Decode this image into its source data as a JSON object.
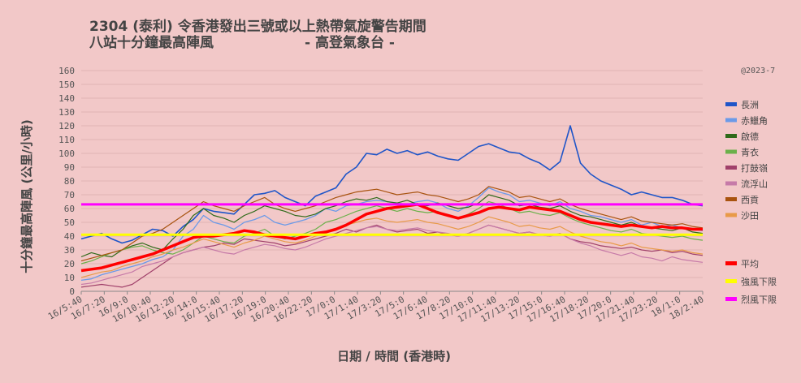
{
  "chart_data": {
    "type": "line",
    "title_line1": "2304 (泰利)   令香港發出三號或以上熱帶氣旋警告期間",
    "title_line2": "八站十分鐘最高陣風",
    "title_source": "- 高登氣象台 -",
    "copyright": "@2023-7",
    "ylabel": "十分鐘最高陣風  (公里/小時)",
    "xlabel": "日期  /  時間  (香港時)",
    "ylim": [
      0,
      160
    ],
    "yticks": [
      0,
      10,
      20,
      30,
      40,
      50,
      60,
      70,
      80,
      90,
      100,
      110,
      120,
      130,
      140,
      150,
      160
    ],
    "grid": true,
    "legend_position": "right",
    "x_ticks": [
      "16/5:40",
      "16/7:20",
      "16/9:0",
      "16/10:40",
      "16/12:20",
      "16/14:0",
      "16/15:40",
      "16/17:20",
      "16/19:0",
      "16/20:40",
      "16/22:20",
      "17/0:0",
      "17/1:40",
      "17/3:20",
      "17/5:0",
      "17/6:40",
      "17/8:20",
      "17/10:0",
      "17/11:40",
      "17/13:20",
      "17/15:0",
      "17/16:40",
      "17/18:20",
      "17/20:0",
      "17/21:40",
      "17/23:20",
      "18/1:0",
      "18/2:40"
    ],
    "series": [
      {
        "name": "長洲",
        "color": "#1f55c8",
        "width": 1.6,
        "values": [
          38,
          40,
          42,
          38,
          35,
          37,
          41,
          45,
          44,
          40,
          47,
          52,
          60,
          58,
          57,
          56,
          63,
          70,
          71,
          73,
          68,
          65,
          62,
          69,
          72,
          75,
          85,
          90,
          100,
          99,
          103,
          100,
          102,
          99,
          101,
          98,
          96,
          95,
          100,
          105,
          107,
          104,
          101,
          100,
          96,
          93,
          88,
          94,
          120,
          93,
          85,
          80,
          77,
          74,
          70,
          72,
          70,
          68,
          68,
          66,
          63,
          62
        ]
      },
      {
        "name": "赤鱲角",
        "color": "#6b9ae8",
        "width": 1.3,
        "values": [
          8,
          9,
          12,
          14,
          16,
          18,
          20,
          23,
          25,
          30,
          40,
          45,
          55,
          50,
          48,
          45,
          50,
          52,
          55,
          50,
          48,
          50,
          52,
          55,
          60,
          58,
          62,
          63,
          65,
          66,
          65,
          64,
          63,
          65,
          66,
          64,
          60,
          58,
          62,
          68,
          75,
          72,
          70,
          65,
          66,
          64,
          62,
          65,
          60,
          58,
          55,
          54,
          52,
          50,
          52,
          48,
          50,
          47,
          48,
          46,
          45,
          44
        ]
      },
      {
        "name": "啟德",
        "color": "#2f6a1a",
        "width": 1.2,
        "values": [
          25,
          28,
          26,
          25,
          30,
          33,
          35,
          32,
          30,
          38,
          45,
          55,
          60,
          55,
          53,
          50,
          55,
          58,
          62,
          60,
          58,
          55,
          54,
          56,
          60,
          62,
          65,
          67,
          66,
          68,
          65,
          64,
          66,
          63,
          62,
          64,
          62,
          60,
          61,
          64,
          70,
          68,
          66,
          62,
          63,
          61,
          60,
          62,
          58,
          55,
          54,
          52,
          50,
          48,
          50,
          47,
          46,
          45,
          44,
          46,
          43,
          42
        ]
      },
      {
        "name": "青衣",
        "color": "#6bb04a",
        "width": 1.2,
        "values": [
          20,
          22,
          25,
          28,
          30,
          32,
          33,
          30,
          28,
          27,
          30,
          35,
          40,
          38,
          36,
          35,
          40,
          42,
          45,
          40,
          38,
          40,
          42,
          45,
          50,
          52,
          55,
          58,
          60,
          62,
          60,
          58,
          60,
          58,
          57,
          58,
          55,
          53,
          56,
          60,
          65,
          63,
          60,
          57,
          58,
          56,
          55,
          57,
          53,
          50,
          48,
          46,
          44,
          43,
          45,
          42,
          41,
          40,
          39,
          40,
          38,
          37
        ]
      },
      {
        "name": "打鼓嶺",
        "color": "#a0406a",
        "width": 1.2,
        "values": [
          3,
          4,
          5,
          4,
          3,
          5,
          10,
          15,
          20,
          25,
          28,
          30,
          32,
          33,
          35,
          34,
          38,
          37,
          36,
          35,
          33,
          34,
          36,
          38,
          40,
          42,
          45,
          43,
          46,
          48,
          45,
          43,
          44,
          45,
          42,
          43,
          41,
          40,
          42,
          45,
          48,
          46,
          44,
          42,
          43,
          41,
          40,
          42,
          38,
          36,
          35,
          33,
          32,
          31,
          32,
          30,
          29,
          30,
          28,
          29,
          27,
          26
        ]
      },
      {
        "name": "流浮山",
        "color": "#c67aa8",
        "width": 1.2,
        "values": [
          5,
          6,
          8,
          10,
          12,
          14,
          18,
          20,
          22,
          25,
          28,
          30,
          32,
          30,
          28,
          27,
          30,
          32,
          34,
          33,
          31,
          30,
          32,
          35,
          38,
          40,
          42,
          44,
          46,
          47,
          45,
          44,
          45,
          46,
          44,
          43,
          42,
          40,
          42,
          45,
          48,
          46,
          44,
          42,
          43,
          41,
          40,
          42,
          38,
          35,
          33,
          30,
          28,
          26,
          28,
          25,
          24,
          22,
          25,
          23,
          22,
          21
        ]
      },
      {
        "name": "西貢",
        "color": "#a8530f",
        "width": 1.2,
        "values": [
          22,
          24,
          26,
          28,
          30,
          35,
          40,
          42,
          45,
          50,
          55,
          60,
          65,
          62,
          60,
          58,
          62,
          65,
          68,
          63,
          60,
          58,
          60,
          62,
          65,
          68,
          70,
          72,
          73,
          74,
          72,
          70,
          71,
          72,
          70,
          69,
          67,
          65,
          67,
          70,
          76,
          74,
          72,
          68,
          69,
          67,
          65,
          67,
          63,
          60,
          58,
          56,
          54,
          52,
          54,
          51,
          50,
          49,
          48,
          49,
          47,
          46
        ]
      },
      {
        "name": "沙田",
        "color": "#e89a48",
        "width": 1.2,
        "values": [
          10,
          12,
          14,
          15,
          18,
          20,
          22,
          25,
          27,
          30,
          32,
          35,
          38,
          36,
          34,
          32,
          35,
          37,
          40,
          38,
          36,
          35,
          37,
          40,
          42,
          45,
          48,
          50,
          52,
          53,
          51,
          50,
          51,
          52,
          50,
          49,
          47,
          45,
          47,
          50,
          54,
          52,
          50,
          47,
          48,
          46,
          45,
          47,
          43,
          40,
          38,
          36,
          35,
          33,
          35,
          32,
          31,
          30,
          29,
          30,
          28,
          27
        ]
      },
      {
        "name": "平均",
        "color": "#ff0000",
        "width": 3.5,
        "values": [
          15,
          16,
          17,
          19,
          21,
          23,
          25,
          27,
          30,
          33,
          36,
          39,
          40,
          40,
          41,
          42,
          44,
          43,
          41,
          40,
          39,
          38,
          40,
          42,
          43,
          45,
          48,
          52,
          56,
          58,
          60,
          61,
          62,
          63,
          60,
          57,
          55,
          53,
          55,
          57,
          60,
          61,
          60,
          59,
          61,
          60,
          59,
          58,
          55,
          52,
          50,
          49,
          48,
          47,
          48,
          47,
          46,
          47,
          46,
          46,
          45,
          45
        ]
      }
    ],
    "reference_lines": [
      {
        "name": "強風下限",
        "color": "#ffff00",
        "value": 41
      },
      {
        "name": "烈風下限",
        "color": "#ff00ff",
        "value": 63
      }
    ]
  }
}
